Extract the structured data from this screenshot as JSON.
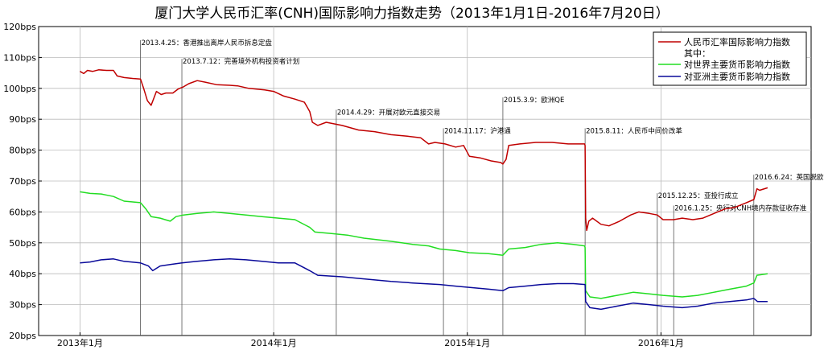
{
  "chart_data": {
    "type": "line",
    "title": "厦门大学人民币汇率(CNH)国际影响力指数走势（2013年1月1日-2016年7月20日）",
    "xlabel": "",
    "ylabel": "",
    "ylim": [
      20,
      120
    ],
    "y_ticks": [
      "20bps",
      "30bps",
      "40bps",
      "50bps",
      "60bps",
      "70bps",
      "80bps",
      "90bps",
      "100bps",
      "110bps",
      "120bps"
    ],
    "x_ticks": [
      {
        "date": "2013-01-01",
        "label": "2013年1月"
      },
      {
        "date": "2014-01-01",
        "label": "2014年1月"
      },
      {
        "date": "2015-01-01",
        "label": "2015年1月"
      },
      {
        "date": "2016-01-01",
        "label": "2016年1月"
      }
    ],
    "xlim": [
      "2012-10-15",
      "2016-10-10"
    ],
    "grid": true,
    "legend_position": "top-right",
    "legend": {
      "header": "其中：",
      "entries": [
        "人民币汇率国际影响力指数",
        "对世界主要货币影响力指数",
        "对亚洲主要货币影响力指数"
      ]
    },
    "colors": {
      "main": "#c00000",
      "world": "#22dd22",
      "asia": "#0a0a9a",
      "event_line": "#555555",
      "grid": "#bbbbbb"
    },
    "events": [
      {
        "date": "2013-04-25",
        "label": "2013.4.25：香港推出离岸人民币拆息定盘",
        "label_y": 114
      },
      {
        "date": "2013-07-12",
        "label": "2013.7.12：完善境外机构投资者计划",
        "label_y": 108
      },
      {
        "date": "2014-04-29",
        "label": "2014.4.29：开展对欧元直接交易",
        "label_y": 91.5
      },
      {
        "date": "2014-11-17",
        "label": "2014.11.17：沪港通",
        "label_y": 85.5
      },
      {
        "date": "2015-03-09",
        "label": "2015.3.9：欧洲QE",
        "label_y": 95.5
      },
      {
        "date": "2015-08-11",
        "label": "2015.8.11：人民币中间价改革",
        "label_y": 85.5
      },
      {
        "date": "2015-12-25",
        "label": "2015.12.25：亚投行成立",
        "label_y": 64.5
      },
      {
        "date": "2016-01-25",
        "label": "2016.1.25：央行对CNH境内存款征收存准",
        "label_y": 60.5
      },
      {
        "date": "2016-06-24",
        "label": "2016.6.24：英国脱欧",
        "label_y": 70.5
      }
    ],
    "series": [
      {
        "name": "人民币汇率国际影响力指数",
        "color": "#c00000",
        "points": [
          [
            "2013-01-01",
            105.5
          ],
          [
            "2013-01-08",
            104.8
          ],
          [
            "2013-01-15",
            105.8
          ],
          [
            "2013-01-25",
            105.5
          ],
          [
            "2013-02-05",
            106
          ],
          [
            "2013-02-20",
            105.8
          ],
          [
            "2013-03-05",
            105.8
          ],
          [
            "2013-03-12",
            104
          ],
          [
            "2013-03-25",
            103.5
          ],
          [
            "2013-04-10",
            103.2
          ],
          [
            "2013-04-25",
            103
          ],
          [
            "2013-05-01",
            100
          ],
          [
            "2013-05-08",
            96
          ],
          [
            "2013-05-15",
            94.5
          ],
          [
            "2013-05-25",
            99
          ],
          [
            "2013-06-03",
            98
          ],
          [
            "2013-06-12",
            98.5
          ],
          [
            "2013-06-25",
            98.5
          ],
          [
            "2013-07-05",
            99.8
          ],
          [
            "2013-07-15",
            100.5
          ],
          [
            "2013-07-25",
            101.5
          ],
          [
            "2013-08-10",
            102.5
          ],
          [
            "2013-08-25",
            102
          ],
          [
            "2013-09-15",
            101.2
          ],
          [
            "2013-10-10",
            101
          ],
          [
            "2013-10-25",
            100.8
          ],
          [
            "2013-11-15",
            100
          ],
          [
            "2013-12-15",
            99.5
          ],
          [
            "2014-01-01",
            99
          ],
          [
            "2014-01-20",
            97.5
          ],
          [
            "2014-02-10",
            96.5
          ],
          [
            "2014-02-28",
            95.5
          ],
          [
            "2014-03-10",
            92.5
          ],
          [
            "2014-03-15",
            89
          ],
          [
            "2014-03-25",
            88
          ],
          [
            "2014-04-10",
            89
          ],
          [
            "2014-05-10",
            88
          ],
          [
            "2014-06-10",
            86.5
          ],
          [
            "2014-07-10",
            86
          ],
          [
            "2014-08-10",
            85
          ],
          [
            "2014-09-10",
            84.5
          ],
          [
            "2014-10-05",
            84
          ],
          [
            "2014-10-20",
            82
          ],
          [
            "2014-11-01",
            82.5
          ],
          [
            "2014-11-20",
            82
          ],
          [
            "2014-12-10",
            81
          ],
          [
            "2014-12-25",
            81.5
          ],
          [
            "2015-01-05",
            78
          ],
          [
            "2015-01-25",
            77.5
          ],
          [
            "2015-02-15",
            76.5
          ],
          [
            "2015-03-05",
            76
          ],
          [
            "2015-03-09",
            75.5
          ],
          [
            "2015-03-15",
            77
          ],
          [
            "2015-03-20",
            81.5
          ],
          [
            "2015-04-10",
            82
          ],
          [
            "2015-05-10",
            82.5
          ],
          [
            "2015-06-10",
            82.5
          ],
          [
            "2015-07-10",
            82
          ],
          [
            "2015-08-10",
            82
          ],
          [
            "2015-08-11",
            81.5
          ],
          [
            "2015-08-12",
            58
          ],
          [
            "2015-08-14",
            54
          ],
          [
            "2015-08-18",
            57
          ],
          [
            "2015-08-25",
            58
          ],
          [
            "2015-09-10",
            56
          ],
          [
            "2015-09-25",
            55.5
          ],
          [
            "2015-10-15",
            57
          ],
          [
            "2015-11-05",
            59
          ],
          [
            "2015-11-20",
            60
          ],
          [
            "2015-12-10",
            59.5
          ],
          [
            "2015-12-25",
            59
          ],
          [
            "2016-01-05",
            57.5
          ],
          [
            "2016-01-25",
            57.5
          ],
          [
            "2016-02-10",
            58
          ],
          [
            "2016-03-01",
            57.5
          ],
          [
            "2016-03-20",
            58
          ],
          [
            "2016-04-10",
            59.5
          ],
          [
            "2016-05-01",
            61
          ],
          [
            "2016-05-20",
            61.5
          ],
          [
            "2016-06-10",
            63
          ],
          [
            "2016-06-24",
            64
          ],
          [
            "2016-06-30",
            67.5
          ],
          [
            "2016-07-05",
            67
          ],
          [
            "2016-07-20",
            67.8
          ]
        ]
      },
      {
        "name": "对世界主要货币影响力指数",
        "color": "#22dd22",
        "points": [
          [
            "2013-01-01",
            66.5
          ],
          [
            "2013-01-20",
            66
          ],
          [
            "2013-02-10",
            65.8
          ],
          [
            "2013-03-05",
            65
          ],
          [
            "2013-03-25",
            63.5
          ],
          [
            "2013-04-25",
            63
          ],
          [
            "2013-05-05",
            61
          ],
          [
            "2013-05-15",
            58.5
          ],
          [
            "2013-06-01",
            58
          ],
          [
            "2013-06-20",
            57
          ],
          [
            "2013-07-01",
            58.5
          ],
          [
            "2013-07-15",
            59
          ],
          [
            "2013-08-10",
            59.5
          ],
          [
            "2013-09-10",
            60
          ],
          [
            "2013-10-10",
            59.5
          ],
          [
            "2013-11-10",
            59
          ],
          [
            "2013-12-10",
            58.5
          ],
          [
            "2014-01-10",
            58
          ],
          [
            "2014-02-10",
            57.5
          ],
          [
            "2014-03-10",
            55
          ],
          [
            "2014-03-20",
            53.5
          ],
          [
            "2014-04-20",
            53
          ],
          [
            "2014-05-20",
            52.5
          ],
          [
            "2014-06-20",
            51.5
          ],
          [
            "2014-08-10",
            50.5
          ],
          [
            "2014-09-20",
            49.5
          ],
          [
            "2014-10-20",
            49
          ],
          [
            "2014-11-10",
            48
          ],
          [
            "2014-12-10",
            47.5
          ],
          [
            "2015-01-05",
            46.8
          ],
          [
            "2015-02-10",
            46.5
          ],
          [
            "2015-03-09",
            46
          ],
          [
            "2015-03-20",
            48
          ],
          [
            "2015-04-20",
            48.5
          ],
          [
            "2015-05-20",
            49.5
          ],
          [
            "2015-06-20",
            50
          ],
          [
            "2015-07-20",
            49.5
          ],
          [
            "2015-08-10",
            49
          ],
          [
            "2015-08-11",
            48.5
          ],
          [
            "2015-08-12",
            34.5
          ],
          [
            "2015-08-20",
            32.5
          ],
          [
            "2015-09-10",
            32
          ],
          [
            "2015-10-10",
            33
          ],
          [
            "2015-11-10",
            34
          ],
          [
            "2015-12-10",
            33.5
          ],
          [
            "2016-01-05",
            33
          ],
          [
            "2016-02-10",
            32.5
          ],
          [
            "2016-03-10",
            33
          ],
          [
            "2016-04-10",
            34
          ],
          [
            "2016-05-10",
            35
          ],
          [
            "2016-06-10",
            36
          ],
          [
            "2016-06-24",
            37
          ],
          [
            "2016-06-30",
            39.5
          ],
          [
            "2016-07-20",
            40
          ]
        ]
      },
      {
        "name": "对亚洲主要货币影响力指数",
        "color": "#0a0a9a",
        "points": [
          [
            "2013-01-01",
            43.5
          ],
          [
            "2013-01-20",
            43.8
          ],
          [
            "2013-02-10",
            44.5
          ],
          [
            "2013-03-05",
            44.8
          ],
          [
            "2013-03-25",
            44
          ],
          [
            "2013-04-25",
            43.5
          ],
          [
            "2013-05-10",
            42.5
          ],
          [
            "2013-05-18",
            41
          ],
          [
            "2013-06-01",
            42.5
          ],
          [
            "2013-06-20",
            43
          ],
          [
            "2013-07-12",
            43.5
          ],
          [
            "2013-08-10",
            44
          ],
          [
            "2013-09-10",
            44.5
          ],
          [
            "2013-10-10",
            44.8
          ],
          [
            "2013-11-10",
            44.5
          ],
          [
            "2013-12-10",
            44
          ],
          [
            "2014-01-10",
            43.5
          ],
          [
            "2014-02-10",
            43.5
          ],
          [
            "2014-03-10",
            41
          ],
          [
            "2014-03-25",
            39.5
          ],
          [
            "2014-05-10",
            39
          ],
          [
            "2014-06-10",
            38.5
          ],
          [
            "2014-08-10",
            37.5
          ],
          [
            "2014-09-20",
            37
          ],
          [
            "2014-11-10",
            36.5
          ],
          [
            "2014-12-10",
            36
          ],
          [
            "2015-01-10",
            35.5
          ],
          [
            "2015-02-10",
            35
          ],
          [
            "2015-03-09",
            34.5
          ],
          [
            "2015-03-20",
            35.5
          ],
          [
            "2015-04-20",
            36
          ],
          [
            "2015-05-20",
            36.5
          ],
          [
            "2015-06-20",
            36.8
          ],
          [
            "2015-07-20",
            36.8
          ],
          [
            "2015-08-11",
            36.5
          ],
          [
            "2015-08-12",
            31
          ],
          [
            "2015-08-20",
            29
          ],
          [
            "2015-09-10",
            28.5
          ],
          [
            "2015-10-10",
            29.5
          ],
          [
            "2015-11-10",
            30.5
          ],
          [
            "2015-12-10",
            30
          ],
          [
            "2016-01-05",
            29.5
          ],
          [
            "2016-02-10",
            29
          ],
          [
            "2016-03-10",
            29.5
          ],
          [
            "2016-04-10",
            30.5
          ],
          [
            "2016-05-10",
            31
          ],
          [
            "2016-06-10",
            31.5
          ],
          [
            "2016-06-24",
            32
          ],
          [
            "2016-07-01",
            31
          ],
          [
            "2016-07-20",
            31
          ]
        ]
      }
    ]
  }
}
